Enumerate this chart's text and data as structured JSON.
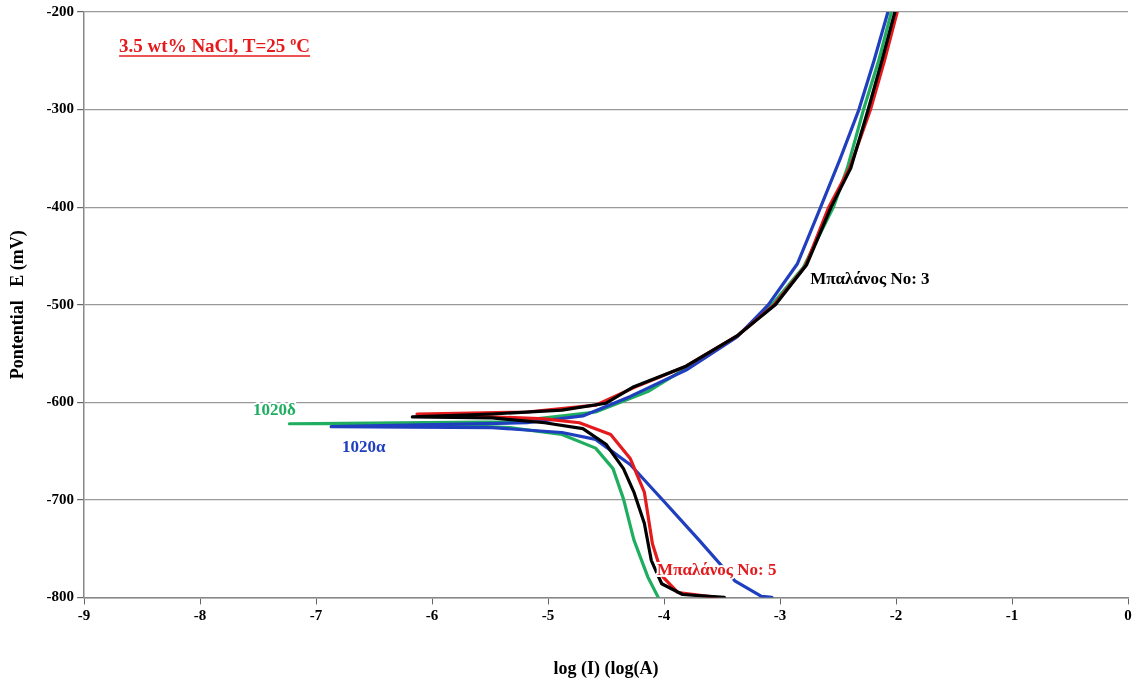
{
  "chart_data": {
    "type": "line",
    "xlabel": "log (I) (log(A)",
    "ylabel": "Pontential   E (mV)",
    "annotations": [
      "3.5 wt% NaCl, T=25 $^{o}$C"
    ],
    "xlim": [
      -9,
      0
    ],
    "xticks": [
      -9,
      -8,
      -7,
      -6,
      -5,
      -4,
      -3,
      -2,
      -1,
      0
    ],
    "ylim": [
      -800,
      -200
    ],
    "yticks": [
      -800,
      -700,
      -600,
      -500,
      -400,
      -300,
      -200
    ],
    "grid": "y",
    "legend": false,
    "marker": "none",
    "line_style": "solid",
    "series": [
      {
        "name": "Μπαλάνος No: 3",
        "color": "#000000",
        "x": [
          -3.48,
          -3.84,
          -4.02,
          -4.11,
          -4.17,
          -4.26,
          -4.35,
          -4.5,
          -4.7,
          -5.03,
          -5.48,
          -6.17,
          -5.48,
          -4.88,
          -4.5,
          -4.26,
          -3.81,
          -3.37,
          -3.04,
          -2.77,
          -2.56,
          -2.39,
          -2.24,
          -2.12,
          -2.01
        ],
        "values": [
          -800,
          -797,
          -786,
          -762,
          -724,
          -692,
          -668,
          -643,
          -627,
          -621,
          -616,
          -615,
          -612,
          -608,
          -601,
          -584,
          -563,
          -532,
          -500,
          -459,
          -400,
          -360,
          -300,
          -249,
          -200
        ]
      },
      {
        "name": "Μπαλάνος No: 5",
        "color": "#e41a1c",
        "x": [
          -3.55,
          -3.88,
          -4.01,
          -4.1,
          -4.17,
          -4.29,
          -4.46,
          -4.73,
          -5.03,
          -6.13,
          -5.18,
          -4.59,
          -4.26,
          -3.81,
          -3.37,
          -3.05,
          -2.78,
          -2.58,
          -2.4,
          -2.22,
          -2.1,
          -1.99
        ],
        "values": [
          -800,
          -795,
          -779,
          -745,
          -692,
          -658,
          -633,
          -621,
          -617,
          -612,
          -610,
          -603,
          -585,
          -563,
          -532,
          -500,
          -460,
          -400,
          -360,
          -300,
          -250,
          -200
        ]
      },
      {
        "name": "1020α",
        "color": "#1f3fbf",
        "x": [
          -3.07,
          -3.16,
          -3.39,
          -3.7,
          -3.99,
          -4.29,
          -4.59,
          -4.88,
          -5.48,
          -6.87,
          -5.18,
          -4.7,
          -4.29,
          -3.81,
          -3.37,
          -3.1,
          -2.85,
          -2.65,
          -2.48,
          -2.32,
          -2.19,
          -2.07
        ],
        "values": [
          -800,
          -799,
          -783,
          -741,
          -703,
          -664,
          -638,
          -631,
          -626,
          -625,
          -621,
          -614,
          -594,
          -567,
          -533,
          -500,
          -458,
          -400,
          -350,
          -300,
          -250,
          -200
        ]
      },
      {
        "name": "1020δ",
        "color": "#1fae5f",
        "x": [
          -4.05,
          -4.14,
          -4.26,
          -4.35,
          -4.44,
          -4.59,
          -4.88,
          -5.33,
          -6.07,
          -7.23,
          -5.33,
          -4.59,
          -4.14,
          -3.81,
          -3.37,
          -3.07,
          -2.8,
          -2.54,
          -2.42,
          -2.28,
          -2.15,
          -2.04
        ],
        "values": [
          -800,
          -779,
          -741,
          -699,
          -668,
          -647,
          -633,
          -626,
          -622,
          -622,
          -620,
          -610,
          -589,
          -565,
          -532,
          -500,
          -462,
          -400,
          -360,
          -300,
          -250,
          -200
        ]
      }
    ]
  }
}
